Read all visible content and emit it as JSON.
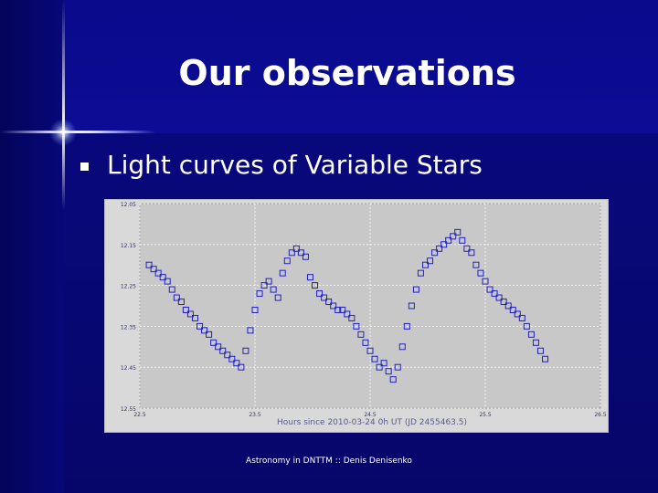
{
  "slide": {
    "title": "Our observations",
    "bullet": "Light curves of Variable Stars",
    "footer": "Astronomy in DNTTM :: Denis Denisenko"
  },
  "colors": {
    "background": "#08087a",
    "plot_background": "#c8c8c8",
    "marker": "#2020c8",
    "text": "#ffffff"
  },
  "icons": {
    "bullet": "square-bullet-icon"
  },
  "chart_data": {
    "type": "scatter",
    "xlabel": "Hours since 2010-03-24 0h UT (JD 2455463.5)",
    "ylabel": "",
    "xlim": [
      22.5,
      26.5
    ],
    "ylim": [
      12.55,
      12.05
    ],
    "y_inverted": true,
    "grid": true,
    "x_ticks": [
      "22.5",
      "23.5",
      "24.5",
      "25.5",
      "26.5"
    ],
    "y_ticks": [
      "12.05",
      "12.15",
      "12.25",
      "12.35",
      "12.45",
      "12.55"
    ],
    "series": [
      {
        "marker": "open-square",
        "x": [
          22.58,
          22.62,
          22.66,
          22.7,
          22.74,
          22.78,
          22.82,
          22.86,
          22.9,
          22.94,
          22.98,
          23.02,
          23.06,
          23.1,
          23.14,
          23.18,
          23.22,
          23.26,
          23.3,
          23.34,
          23.38,
          23.42,
          23.46,
          23.5,
          23.54,
          23.58,
          23.62,
          23.66,
          23.7,
          23.74,
          23.78,
          23.82,
          23.86,
          23.9,
          23.94,
          23.98,
          24.02,
          24.06,
          24.1,
          24.14,
          24.18,
          24.22,
          24.26,
          24.3,
          24.34,
          24.38,
          24.42,
          24.46,
          24.5,
          24.54,
          24.58,
          24.62,
          24.66,
          24.7,
          24.74,
          24.78,
          24.82,
          24.86,
          24.9,
          24.94,
          24.98,
          25.02,
          25.06,
          25.1,
          25.14,
          25.18,
          25.22,
          25.26,
          25.3,
          25.34,
          25.38,
          25.42,
          25.46,
          25.5,
          25.54,
          25.58,
          25.62,
          25.66,
          25.7,
          25.74,
          25.78,
          25.82,
          25.86,
          25.9,
          25.94,
          25.98,
          26.02
        ],
        "y": [
          12.2,
          12.21,
          12.22,
          12.23,
          12.24,
          12.26,
          12.28,
          12.29,
          12.31,
          12.32,
          12.33,
          12.35,
          12.36,
          12.37,
          12.39,
          12.4,
          12.41,
          12.42,
          12.43,
          12.44,
          12.45,
          12.41,
          12.36,
          12.31,
          12.27,
          12.25,
          12.24,
          12.26,
          12.28,
          12.22,
          12.19,
          12.17,
          12.16,
          12.17,
          12.18,
          12.23,
          12.25,
          12.27,
          12.28,
          12.29,
          12.3,
          12.31,
          12.31,
          12.32,
          12.33,
          12.35,
          12.37,
          12.39,
          12.41,
          12.43,
          12.45,
          12.44,
          12.46,
          12.48,
          12.45,
          12.4,
          12.35,
          12.3,
          12.26,
          12.22,
          12.2,
          12.19,
          12.17,
          12.16,
          12.15,
          12.14,
          12.13,
          12.12,
          12.14,
          12.16,
          12.17,
          12.2,
          12.22,
          12.24,
          12.26,
          12.27,
          12.28,
          12.29,
          12.3,
          12.31,
          12.32,
          12.33,
          12.35,
          12.37,
          12.39,
          12.41,
          12.43
        ]
      }
    ]
  }
}
